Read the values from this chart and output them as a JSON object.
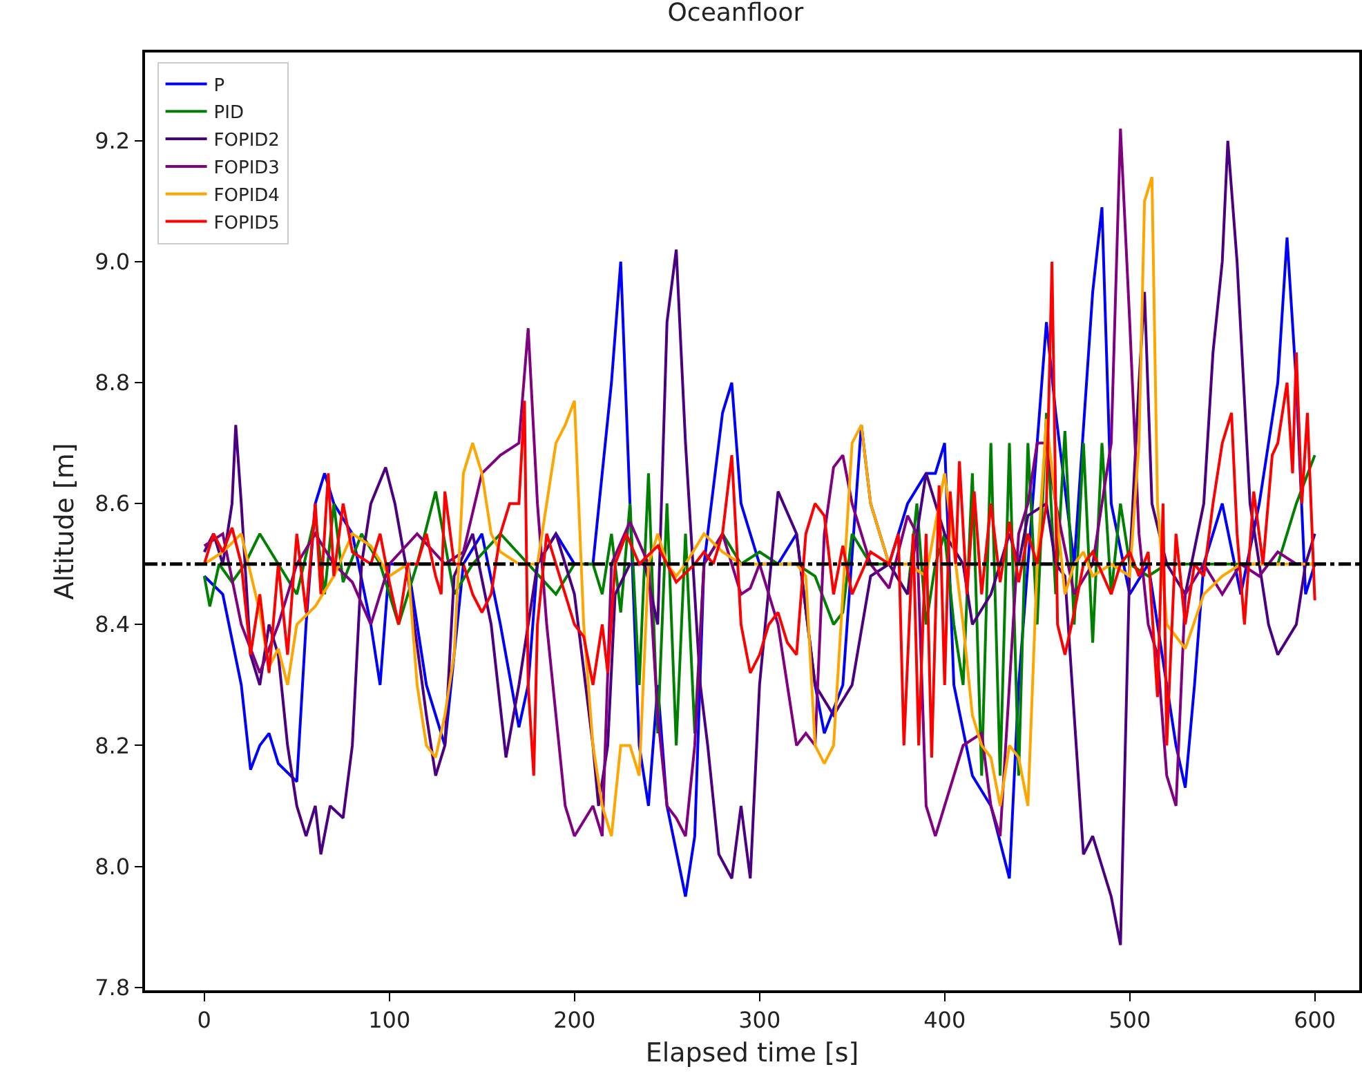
{
  "chart_data": {
    "type": "line",
    "title": "Oceanfloor",
    "xlabel": "Elapsed time [s]",
    "ylabel": "Altitude [m]",
    "xlim": [
      -32,
      624
    ],
    "ylim": [
      7.795,
      9.346
    ],
    "xticks": [
      0,
      100,
      200,
      300,
      400,
      500,
      600
    ],
    "yticks": [
      7.8,
      {
        "value": 8,
        "label": "8.0"
      },
      8.2,
      8.4,
      8.6,
      8.8,
      {
        "value": 9,
        "label": "9.0"
      },
      9.2
    ],
    "grid": false,
    "legend": "top left",
    "line_style": "solid",
    "marker": "none",
    "ref_lines": [
      {
        "axis": "y",
        "value": 8.5,
        "color": "#000000",
        "line_style": "dashdot"
      }
    ],
    "series": [
      {
        "name": "P",
        "color": "#0000ff",
        "x": [
          0,
          10,
          20,
          25,
          30,
          35,
          40,
          50,
          55,
          60,
          65,
          70,
          80,
          90,
          95,
          100,
          110,
          120,
          130,
          140,
          150,
          160,
          170,
          175,
          180,
          190,
          200,
          210,
          220,
          225,
          230,
          235,
          240,
          245,
          250,
          260,
          265,
          270,
          280,
          285,
          290,
          300,
          310,
          320,
          330,
          335,
          345,
          355,
          360,
          370,
          380,
          390,
          395,
          400,
          405,
          415,
          425,
          435,
          440,
          450,
          455,
          460,
          470,
          480,
          485,
          490,
          500,
          510,
          520,
          525,
          530,
          535,
          540,
          550,
          560,
          570,
          580,
          585,
          590,
          595,
          600
        ],
        "values": [
          8.48,
          8.45,
          8.3,
          8.16,
          8.2,
          8.22,
          8.17,
          8.14,
          8.4,
          8.6,
          8.65,
          8.6,
          8.55,
          8.4,
          8.3,
          8.5,
          8.5,
          8.3,
          8.2,
          8.5,
          8.55,
          8.4,
          8.23,
          8.3,
          8.5,
          8.55,
          8.5,
          8.5,
          8.8,
          9.0,
          8.6,
          8.2,
          8.1,
          8.3,
          8.1,
          7.95,
          8.05,
          8.5,
          8.75,
          8.8,
          8.6,
          8.5,
          8.5,
          8.55,
          8.3,
          8.22,
          8.3,
          8.73,
          8.6,
          8.5,
          8.6,
          8.65,
          8.65,
          8.7,
          8.3,
          8.15,
          8.1,
          7.98,
          8.3,
          8.7,
          8.9,
          8.75,
          8.5,
          8.95,
          9.09,
          8.6,
          8.45,
          8.5,
          8.3,
          8.2,
          8.13,
          8.3,
          8.5,
          8.6,
          8.45,
          8.6,
          8.8,
          9.04,
          8.8,
          8.45,
          8.5
        ]
      },
      {
        "name": "PID",
        "color": "#008000",
        "x": [
          0,
          3,
          8,
          15,
          22,
          30,
          40,
          50,
          60,
          65,
          70,
          75,
          85,
          95,
          105,
          115,
          125,
          135,
          145,
          160,
          175,
          190,
          200,
          210,
          215,
          220,
          225,
          230,
          235,
          240,
          245,
          250,
          255,
          260,
          265,
          270,
          280,
          290,
          300,
          310,
          320,
          330,
          340,
          345,
          350,
          360,
          370,
          380,
          385,
          390,
          395,
          400,
          405,
          410,
          415,
          420,
          425,
          430,
          435,
          440,
          445,
          450,
          455,
          460,
          465,
          470,
          475,
          480,
          485,
          490,
          495,
          500,
          510,
          520,
          530,
          540,
          550,
          560,
          570,
          580,
          590,
          600
        ],
        "values": [
          8.48,
          8.43,
          8.5,
          8.47,
          8.5,
          8.55,
          8.5,
          8.45,
          8.58,
          8.45,
          8.6,
          8.47,
          8.55,
          8.5,
          8.4,
          8.5,
          8.62,
          8.45,
          8.5,
          8.55,
          8.5,
          8.45,
          8.5,
          8.5,
          8.45,
          8.55,
          8.42,
          8.6,
          8.3,
          8.65,
          8.22,
          8.6,
          8.2,
          8.55,
          8.22,
          8.5,
          8.55,
          8.5,
          8.52,
          8.5,
          8.5,
          8.48,
          8.4,
          8.42,
          8.55,
          8.5,
          8.5,
          8.45,
          8.6,
          8.4,
          8.5,
          8.55,
          8.4,
          8.3,
          8.65,
          8.15,
          8.7,
          8.15,
          8.7,
          8.15,
          8.7,
          8.4,
          8.75,
          8.45,
          8.72,
          8.4,
          8.7,
          8.37,
          8.7,
          8.45,
          8.6,
          8.5,
          8.48,
          8.5,
          8.5,
          8.5,
          8.5,
          8.5,
          8.5,
          8.5,
          8.6,
          8.68
        ]
      },
      {
        "name": "FOPID2",
        "color": "#4b0082",
        "x": [
          0,
          5,
          10,
          15,
          17,
          20,
          25,
          30,
          35,
          40,
          45,
          50,
          55,
          60,
          63,
          68,
          75,
          80,
          85,
          90,
          98,
          103,
          110,
          120,
          125,
          130,
          135,
          145,
          155,
          163,
          170,
          180,
          190,
          200,
          210,
          213,
          218,
          222,
          230,
          238,
          245,
          250,
          255,
          260,
          268,
          272,
          278,
          285,
          290,
          295,
          300,
          310,
          320,
          330,
          340,
          350,
          360,
          370,
          380,
          390,
          400,
          410,
          415,
          425,
          435,
          440,
          445,
          455,
          460,
          465,
          470,
          475,
          480,
          485,
          490,
          495,
          500,
          505,
          508,
          512,
          520,
          530,
          540,
          545,
          550,
          553,
          558,
          565,
          575,
          580,
          590,
          595,
          600
        ],
        "values": [
          8.52,
          8.55,
          8.5,
          8.6,
          8.73,
          8.6,
          8.35,
          8.3,
          8.4,
          8.35,
          8.2,
          8.1,
          8.05,
          8.1,
          8.02,
          8.1,
          8.08,
          8.2,
          8.5,
          8.6,
          8.66,
          8.6,
          8.48,
          8.25,
          8.15,
          8.2,
          8.48,
          8.55,
          8.4,
          8.18,
          8.3,
          8.5,
          8.55,
          8.45,
          8.2,
          8.1,
          8.2,
          8.45,
          8.5,
          8.5,
          8.4,
          8.9,
          9.02,
          8.7,
          8.3,
          8.2,
          8.02,
          7.98,
          8.1,
          7.98,
          8.3,
          8.62,
          8.55,
          8.3,
          8.25,
          8.3,
          8.48,
          8.5,
          8.45,
          8.65,
          8.55,
          8.5,
          8.4,
          8.45,
          8.55,
          8.5,
          8.58,
          8.6,
          8.5,
          8.48,
          8.25,
          8.02,
          8.05,
          8.0,
          7.95,
          7.87,
          8.5,
          8.8,
          8.95,
          8.6,
          8.5,
          8.45,
          8.6,
          8.85,
          9.0,
          9.2,
          9.0,
          8.6,
          8.4,
          8.35,
          8.4,
          8.5,
          8.55
        ]
      },
      {
        "name": "FOPID3",
        "color": "#800080",
        "x": [
          0,
          10,
          20,
          30,
          40,
          50,
          60,
          70,
          80,
          90,
          100,
          115,
          130,
          140,
          150,
          160,
          170,
          175,
          180,
          185,
          190,
          195,
          200,
          210,
          215,
          220,
          230,
          240,
          245,
          250,
          255,
          260,
          265,
          270,
          280,
          290,
          295,
          300,
          310,
          320,
          325,
          330,
          335,
          340,
          345,
          350,
          360,
          370,
          380,
          385,
          390,
          395,
          400,
          410,
          420,
          425,
          430,
          440,
          445,
          450,
          455,
          460,
          470,
          480,
          490,
          495,
          500,
          505,
          510,
          515,
          520,
          525,
          530,
          540,
          550,
          560,
          570,
          580,
          590,
          600
        ],
        "values": [
          8.53,
          8.55,
          8.4,
          8.32,
          8.4,
          8.5,
          8.55,
          8.5,
          8.47,
          8.4,
          8.5,
          8.55,
          8.5,
          8.52,
          8.65,
          8.68,
          8.7,
          8.89,
          8.6,
          8.4,
          8.25,
          8.1,
          8.05,
          8.1,
          8.05,
          8.5,
          8.57,
          8.5,
          8.25,
          8.1,
          8.08,
          8.05,
          8.2,
          8.5,
          8.55,
          8.45,
          8.46,
          8.5,
          8.4,
          8.2,
          8.22,
          8.2,
          8.55,
          8.66,
          8.68,
          8.6,
          8.5,
          8.46,
          8.58,
          8.55,
          8.1,
          8.05,
          8.1,
          8.2,
          8.22,
          8.1,
          8.05,
          8.55,
          8.6,
          8.7,
          8.7,
          8.6,
          8.45,
          8.5,
          8.7,
          9.22,
          8.9,
          8.55,
          8.4,
          8.35,
          8.15,
          8.1,
          8.45,
          8.5,
          8.45,
          8.5,
          8.48,
          8.52,
          8.5,
          8.5
        ]
      },
      {
        "name": "FOPID4",
        "color": "#ffa500",
        "x": [
          0,
          10,
          20,
          30,
          35,
          40,
          45,
          50,
          60,
          70,
          80,
          90,
          100,
          110,
          115,
          120,
          125,
          130,
          135,
          140,
          145,
          150,
          155,
          160,
          170,
          180,
          190,
          195,
          200,
          205,
          210,
          215,
          220,
          225,
          230,
          235,
          240,
          245,
          250,
          255,
          260,
          270,
          280,
          290,
          300,
          310,
          320,
          325,
          330,
          335,
          340,
          350,
          355,
          360,
          370,
          380,
          390,
          400,
          410,
          415,
          420,
          425,
          430,
          435,
          440,
          445,
          450,
          455,
          460,
          465,
          470,
          475,
          480,
          490,
          500,
          505,
          508,
          512,
          515,
          520,
          530,
          540,
          550,
          560,
          580,
          600
        ],
        "values": [
          8.5,
          8.52,
          8.55,
          8.42,
          8.33,
          8.36,
          8.3,
          8.4,
          8.43,
          8.48,
          8.55,
          8.53,
          8.48,
          8.5,
          8.3,
          8.2,
          8.18,
          8.25,
          8.35,
          8.65,
          8.7,
          8.65,
          8.55,
          8.52,
          8.5,
          8.5,
          8.7,
          8.73,
          8.77,
          8.4,
          8.2,
          8.1,
          8.05,
          8.2,
          8.2,
          8.15,
          8.5,
          8.55,
          8.5,
          8.48,
          8.5,
          8.55,
          8.52,
          8.5,
          8.5,
          8.5,
          8.5,
          8.48,
          8.2,
          8.17,
          8.2,
          8.7,
          8.73,
          8.6,
          8.5,
          8.5,
          8.48,
          8.65,
          8.4,
          8.25,
          8.2,
          8.18,
          8.1,
          8.2,
          8.18,
          8.1,
          8.5,
          8.74,
          8.6,
          8.45,
          8.5,
          8.52,
          8.48,
          8.5,
          8.48,
          8.7,
          9.1,
          9.14,
          8.6,
          8.4,
          8.36,
          8.45,
          8.48,
          8.5,
          8.5,
          8.5
        ]
      },
      {
        "name": "FOPID5",
        "color": "#ff0000",
        "x": [
          0,
          5,
          10,
          15,
          20,
          25,
          30,
          35,
          40,
          45,
          50,
          55,
          60,
          63,
          67,
          70,
          75,
          80,
          90,
          95,
          100,
          105,
          110,
          115,
          120,
          125,
          128,
          130,
          135,
          140,
          145,
          150,
          155,
          160,
          165,
          170,
          173,
          175,
          178,
          180,
          185,
          190,
          200,
          205,
          210,
          215,
          218,
          222,
          228,
          235,
          245,
          255,
          265,
          270,
          275,
          280,
          285,
          290,
          295,
          300,
          305,
          310,
          315,
          320,
          325,
          330,
          335,
          340,
          345,
          350,
          360,
          370,
          375,
          378,
          383,
          386,
          390,
          393,
          397,
          400,
          403,
          406,
          408,
          412,
          416,
          420,
          425,
          430,
          435,
          440,
          445,
          450,
          455,
          458,
          461,
          465,
          470,
          475,
          480,
          490,
          495,
          500,
          505,
          510,
          515,
          518,
          520,
          525,
          530,
          535,
          540,
          545,
          550,
          555,
          558,
          562,
          567,
          572,
          577,
          580,
          585,
          588,
          590,
          593,
          596,
          600
        ],
        "values": [
          8.5,
          8.55,
          8.52,
          8.56,
          8.5,
          8.35,
          8.45,
          8.32,
          8.5,
          8.35,
          8.55,
          8.42,
          8.6,
          8.45,
          8.65,
          8.48,
          8.6,
          8.52,
          8.5,
          8.55,
          8.47,
          8.4,
          8.5,
          8.5,
          8.55,
          8.48,
          8.45,
          8.62,
          8.5,
          8.5,
          8.45,
          8.42,
          8.45,
          8.55,
          8.6,
          8.6,
          8.77,
          8.3,
          8.15,
          8.4,
          8.55,
          8.5,
          8.4,
          8.38,
          8.3,
          8.4,
          8.32,
          8.5,
          8.55,
          8.5,
          8.53,
          8.47,
          8.5,
          8.52,
          8.5,
          8.55,
          8.68,
          8.4,
          8.32,
          8.35,
          8.4,
          8.42,
          8.37,
          8.35,
          8.55,
          8.6,
          8.58,
          8.45,
          8.53,
          8.45,
          8.52,
          8.5,
          8.55,
          8.2,
          8.55,
          8.2,
          8.55,
          8.18,
          8.63,
          8.3,
          8.62,
          8.5,
          8.67,
          8.45,
          8.62,
          8.45,
          8.6,
          8.47,
          8.57,
          8.47,
          8.55,
          8.5,
          8.6,
          9.0,
          8.4,
          8.35,
          8.42,
          8.5,
          8.52,
          8.45,
          8.5,
          8.52,
          8.48,
          8.52,
          8.28,
          8.6,
          8.2,
          8.55,
          8.4,
          8.5,
          8.48,
          8.6,
          8.7,
          8.75,
          8.55,
          8.4,
          8.62,
          8.5,
          8.68,
          8.7,
          8.8,
          8.65,
          8.85,
          8.6,
          8.75,
          8.44
        ]
      }
    ]
  }
}
